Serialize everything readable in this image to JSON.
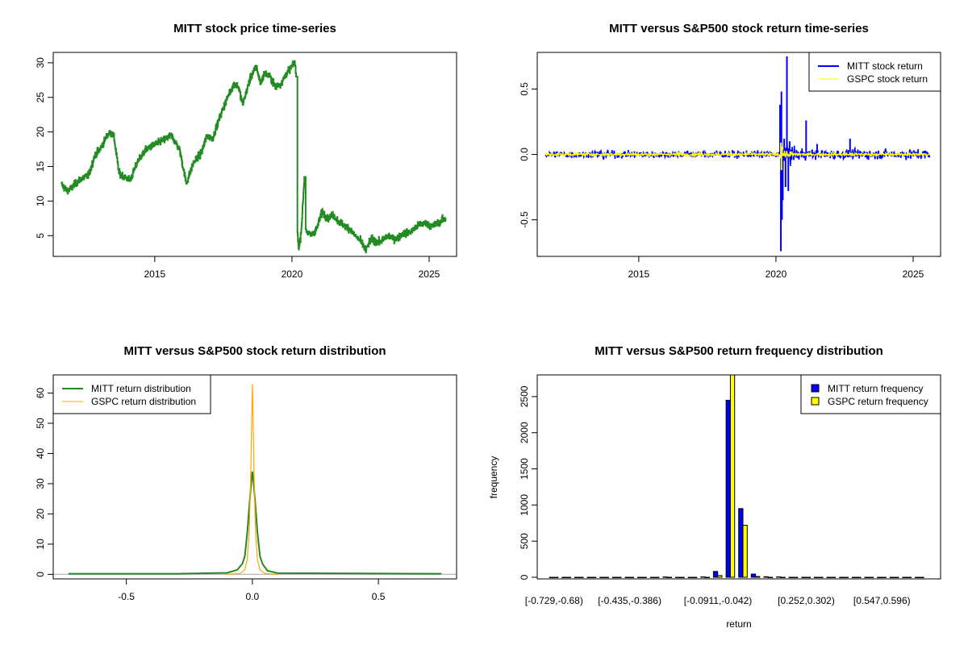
{
  "chart_data": [
    {
      "id": "price",
      "type": "line",
      "title": "MITT stock price time-series",
      "xlabel": "",
      "ylabel": "",
      "xlim": [
        2011.3,
        2026.0
      ],
      "ylim": [
        2.0,
        31.5
      ],
      "x_ticks": [
        2015,
        2020,
        2025
      ],
      "x_tick_labels": [
        "2015",
        "2020",
        "2025"
      ],
      "y_ticks": [
        5,
        10,
        15,
        20,
        25,
        30
      ],
      "y_tick_labels": [
        "5",
        "10",
        "15",
        "20",
        "25",
        "30"
      ],
      "grid": false,
      "series": [
        {
          "name": "MITT",
          "color": "#228B22",
          "x": [
            2011.6,
            2011.8,
            2011.95,
            2012.1,
            2012.3,
            2012.6,
            2012.8,
            2013.0,
            2013.2,
            2013.35,
            2013.5,
            2013.7,
            2013.9,
            2014.1,
            2014.4,
            2014.7,
            2015.0,
            2015.3,
            2015.6,
            2015.9,
            2016.1,
            2016.15,
            2016.4,
            2016.7,
            2016.9,
            2017.1,
            2017.4,
            2017.7,
            2017.9,
            2018.05,
            2018.2,
            2018.5,
            2018.7,
            2018.85,
            2019.0,
            2019.2,
            2019.4,
            2019.6,
            2019.8,
            2020.0,
            2020.1,
            2020.15,
            2020.2,
            2020.25,
            2020.3,
            2020.35,
            2020.45,
            2020.5,
            2020.55,
            2020.7,
            2020.9,
            2021.1,
            2021.3,
            2021.5,
            2021.7,
            2021.9,
            2022.1,
            2022.3,
            2022.5,
            2022.7,
            2022.75,
            2022.9,
            2023.2,
            2023.5,
            2023.8,
            2024.0,
            2024.3,
            2024.6,
            2024.9,
            2025.1,
            2025.3,
            2025.6
          ],
          "y": [
            12.4,
            11.5,
            11.8,
            12.5,
            13.2,
            13.8,
            16.5,
            17.5,
            19.0,
            20.0,
            19.5,
            14.0,
            13.5,
            13.0,
            16.0,
            17.5,
            18.2,
            18.8,
            19.5,
            17.5,
            13.5,
            12.5,
            15.5,
            17.0,
            19.5,
            19.0,
            22.5,
            25.5,
            27.0,
            26.5,
            24.0,
            28.0,
            29.5,
            27.0,
            28.5,
            28.0,
            26.5,
            27.0,
            28.5,
            29.5,
            30.2,
            28.0,
            5.5,
            3.0,
            4.5,
            6.5,
            13.5,
            6.0,
            5.5,
            5.0,
            6.0,
            8.5,
            7.5,
            8.0,
            7.0,
            6.5,
            6.0,
            5.0,
            4.2,
            2.8,
            3.5,
            4.5,
            4.0,
            5.0,
            4.5,
            5.2,
            5.5,
            6.5,
            6.8,
            6.3,
            6.8,
            7.5
          ]
        }
      ]
    },
    {
      "id": "returns",
      "type": "line",
      "title": "MITT versus S&P500 stock return time-series",
      "xlabel": "",
      "ylabel": "",
      "xlim": [
        2011.3,
        2026.0
      ],
      "ylim": [
        -0.78,
        0.78
      ],
      "x_ticks": [
        2015,
        2020,
        2025
      ],
      "x_tick_labels": [
        "2015",
        "2020",
        "2025"
      ],
      "y_ticks": [
        -0.5,
        0.0,
        0.5
      ],
      "y_tick_labels": [
        "-0.5",
        "0.0",
        "0.5"
      ],
      "grid": false,
      "legend": {
        "placement": "top-right",
        "entries": [
          "MITT stock return",
          "GSPC stock return"
        ]
      },
      "series": [
        {
          "name": "MITT stock return",
          "color": "#0000FF",
          "date_range": [
            2011.6,
            2025.6
          ],
          "typical_abs_return": 0.03,
          "spikes": {
            "x": [
              2020.15,
              2020.18,
              2020.2,
              2020.22,
              2020.25,
              2020.3,
              2020.35,
              2020.4,
              2020.45,
              2020.5,
              2021.1,
              2021.5,
              2022.7
            ],
            "y": [
              0.38,
              -0.74,
              0.48,
              -0.5,
              -0.35,
              0.12,
              -0.25,
              0.75,
              -0.28,
              0.1,
              0.26,
              0.08,
              0.12
            ]
          }
        },
        {
          "name": "GSPC stock return",
          "color": "#FFFF00",
          "date_range": [
            2011.6,
            2025.6
          ],
          "typical_abs_return": 0.012,
          "spikes": {
            "x": [
              2020.18,
              2020.2,
              2020.22
            ],
            "y": [
              0.09,
              -0.12,
              0.06
            ]
          }
        }
      ]
    },
    {
      "id": "density",
      "type": "line",
      "title": "MITT versus S&P500 stock return distribution",
      "xlabel": "",
      "ylabel": "",
      "xlim": [
        -0.79,
        0.81
      ],
      "ylim": [
        -1.5,
        66
      ],
      "x_ticks": [
        -0.5,
        0.0,
        0.5
      ],
      "x_tick_labels": [
        "-0.5",
        "0.0",
        "0.5"
      ],
      "y_ticks": [
        0,
        10,
        20,
        30,
        40,
        50,
        60
      ],
      "y_tick_labels": [
        "0",
        "10",
        "20",
        "30",
        "40",
        "50",
        "60"
      ],
      "grid": false,
      "legend": {
        "placement": "top-left",
        "entries": [
          "MITT return distribution",
          "GSPC return distribution"
        ]
      },
      "series": [
        {
          "name": "MITT return distribution",
          "color": "#228B22",
          "x": [
            -0.73,
            -0.3,
            -0.1,
            -0.06,
            -0.04,
            -0.03,
            -0.02,
            -0.01,
            -0.005,
            0.0,
            0.005,
            0.01,
            0.02,
            0.03,
            0.04,
            0.06,
            0.1,
            0.75
          ],
          "y": [
            0.2,
            0.2,
            0.5,
            1.5,
            3.5,
            6,
            14,
            25,
            30,
            34,
            30,
            25,
            14,
            6,
            3.5,
            1.2,
            0.4,
            0.2
          ]
        },
        {
          "name": "GSPC return distribution",
          "color": "#FFA500",
          "x": [
            -0.1,
            -0.05,
            -0.03,
            -0.02,
            -0.012,
            -0.006,
            -0.002,
            0.0,
            0.002,
            0.006,
            0.012,
            0.02,
            0.03,
            0.05,
            0.1
          ],
          "y": [
            0,
            0.3,
            1.5,
            5,
            15,
            35,
            55,
            63,
            55,
            35,
            15,
            5,
            1.5,
            0.3,
            0
          ]
        }
      ],
      "baseline_color": "#BEBEBE"
    },
    {
      "id": "histogram",
      "type": "bar",
      "title": "MITT versus S&P500 return frequency distribution",
      "xlabel": "return",
      "ylabel": "frequency",
      "ylim": [
        0,
        2800
      ],
      "y_ticks": [
        0,
        500,
        1000,
        1500,
        2000,
        2500
      ],
      "y_tick_labels": [
        "0",
        "500",
        "1000",
        "1500",
        "2000",
        "2500"
      ],
      "x_tick_labels": [
        {
          "label": "[-0.729,-0.68)",
          "bin": 0
        },
        {
          "label": "[-0.435,-0.386)",
          "bin": 6
        },
        {
          "label": "[-0.0911,-0.042)",
          "bin": 13
        },
        {
          "label": "[0.252,0.302)",
          "bin": 20
        },
        {
          "label": "[0.547,0.596)",
          "bin": 26
        }
      ],
      "grid": false,
      "legend": {
        "placement": "top-right",
        "entries": [
          "MITT return frequency",
          "GSPC return frequency"
        ]
      },
      "series": [
        {
          "name": "MITT return frequency",
          "color": "#0000FF",
          "values": [
            0,
            0,
            0,
            0,
            0,
            0,
            0,
            0,
            0,
            5,
            0,
            0,
            6,
            80,
            2450,
            950,
            45,
            8,
            6,
            0,
            0,
            0,
            0,
            0,
            0,
            0,
            0,
            0,
            0,
            0
          ]
        },
        {
          "name": "GSPC return frequency",
          "color": "#FFFF00",
          "values": [
            0,
            0,
            0,
            0,
            0,
            0,
            0,
            0,
            0,
            0,
            0,
            0,
            0,
            25,
            2800,
            720,
            10,
            0,
            0,
            0,
            0,
            0,
            0,
            0,
            0,
            0,
            0,
            0,
            0,
            0
          ]
        }
      ]
    }
  ]
}
